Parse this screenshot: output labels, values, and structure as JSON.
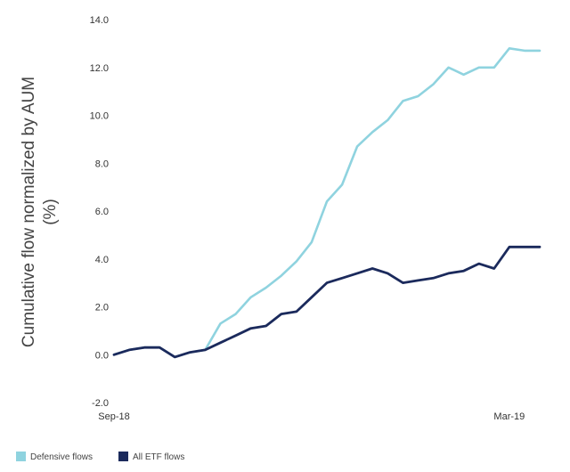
{
  "chart_data": {
    "type": "line",
    "ylabel_lines": [
      "Cumulative flow normalized by AUM",
      "(%)"
    ],
    "x_tick_labels": [
      {
        "label": "Sep-18",
        "x": 0
      },
      {
        "label": "Mar-19",
        "x": 26
      }
    ],
    "xlim": [
      0,
      28
    ],
    "ylim": [
      -2,
      14
    ],
    "y_ticks": [
      "14.0",
      "12.0",
      "10.0",
      "8.0",
      "6.0",
      "4.0",
      "2.0",
      "0.0",
      "-2.0"
    ],
    "grid": false,
    "legend_position": "bottom-left",
    "series": [
      {
        "name": "Defensive flows",
        "color": "#8fd3df",
        "x": [
          0,
          1,
          2,
          3,
          4,
          5,
          6,
          7,
          8,
          9,
          10,
          11,
          12,
          13,
          14,
          15,
          16,
          17,
          18,
          19,
          20,
          21,
          22,
          23,
          24,
          25,
          26,
          27,
          28
        ],
        "values": [
          0.0,
          0.2,
          0.3,
          0.3,
          -0.1,
          0.1,
          0.2,
          1.3,
          1.7,
          2.4,
          2.8,
          3.3,
          3.9,
          4.7,
          6.4,
          7.1,
          8.7,
          9.3,
          9.8,
          10.6,
          10.8,
          11.3,
          12.0,
          11.7,
          12.0,
          12.0,
          12.8,
          12.7,
          12.7
        ]
      },
      {
        "name": "All ETF flows",
        "color": "#1b2a5c",
        "x": [
          0,
          1,
          2,
          3,
          4,
          5,
          6,
          7,
          8,
          9,
          10,
          11,
          12,
          13,
          14,
          15,
          16,
          17,
          18,
          19,
          20,
          21,
          22,
          23,
          24,
          25,
          26,
          27,
          28
        ],
        "values": [
          0.0,
          0.2,
          0.3,
          0.3,
          -0.1,
          0.1,
          0.2,
          0.5,
          0.8,
          1.1,
          1.2,
          1.7,
          1.8,
          2.4,
          3.0,
          3.2,
          3.4,
          3.6,
          3.4,
          3.0,
          3.1,
          3.2,
          3.4,
          3.5,
          3.8,
          3.6,
          4.5,
          4.5,
          4.5
        ]
      }
    ]
  }
}
